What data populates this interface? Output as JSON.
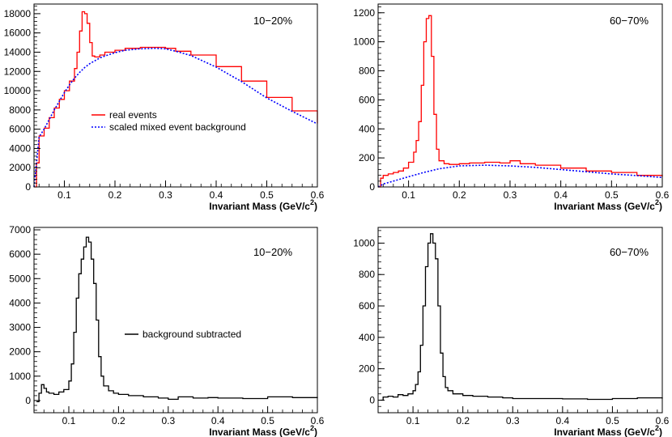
{
  "chart_data": [
    {
      "type": "line",
      "panel": "top-left",
      "annotation": "10−20%",
      "xlabel": "Invariant Mass (GeV/c",
      "xlabel_sup": "2",
      "xlabel_close": ")",
      "xlim": [
        0.04,
        0.6
      ],
      "ylim": [
        0,
        19000
      ],
      "xticks": [
        0.1,
        0.2,
        0.3,
        0.4,
        0.5,
        0.6
      ],
      "xtick_labels": [
        "0.1",
        "0.2",
        "0.3",
        "0.4",
        "0.5",
        "0.6"
      ],
      "yticks": [
        0,
        2000,
        4000,
        6000,
        8000,
        10000,
        12000,
        14000,
        16000,
        18000
      ],
      "ytick_labels": [
        "0",
        "2000",
        "4000",
        "6000",
        "8000",
        "10000",
        "12000",
        "14000",
        "16000",
        "18000"
      ],
      "legend_position": "middle-left",
      "series": [
        {
          "name": "real  events",
          "color": "#ff0000",
          "style": "solid-step",
          "x": [
            0.04,
            0.045,
            0.05,
            0.06,
            0.07,
            0.08,
            0.09,
            0.1,
            0.11,
            0.12,
            0.125,
            0.13,
            0.135,
            0.14,
            0.145,
            0.15,
            0.155,
            0.16,
            0.17,
            0.18,
            0.2,
            0.22,
            0.25,
            0.28,
            0.3,
            0.32,
            0.35,
            0.4,
            0.45,
            0.5,
            0.55,
            0.6
          ],
          "y": [
            0,
            2500,
            5300,
            6100,
            7200,
            8200,
            9100,
            10000,
            11000,
            12300,
            14000,
            16200,
            18200,
            18000,
            17000,
            15000,
            13600,
            13500,
            13700,
            14000,
            14200,
            14400,
            14500,
            14500,
            14400,
            14100,
            13700,
            12500,
            11000,
            9300,
            7900,
            6600
          ]
        },
        {
          "name": "scaled mixed event background",
          "color": "#0000ff",
          "style": "dotted",
          "x": [
            0.04,
            0.045,
            0.05,
            0.06,
            0.07,
            0.08,
            0.09,
            0.1,
            0.11,
            0.12,
            0.13,
            0.14,
            0.15,
            0.16,
            0.17,
            0.18,
            0.2,
            0.22,
            0.25,
            0.28,
            0.3,
            0.32,
            0.35,
            0.4,
            0.45,
            0.5,
            0.55,
            0.6
          ],
          "y": [
            0,
            2500,
            5200,
            6000,
            7000,
            8000,
            8900,
            9800,
            10600,
            11300,
            11900,
            12400,
            12800,
            13100,
            13400,
            13600,
            13950,
            14200,
            14350,
            14400,
            14350,
            14100,
            13650,
            12450,
            10950,
            9250,
            7850,
            6550
          ]
        }
      ]
    },
    {
      "type": "line",
      "panel": "top-right",
      "annotation": "60−70%",
      "xlabel": "Invariant Mass (GeV/c",
      "xlabel_sup": "2",
      "xlabel_close": ")",
      "xlim": [
        0.04,
        0.6
      ],
      "ylim": [
        0,
        1260
      ],
      "xticks": [
        0.1,
        0.2,
        0.3,
        0.4,
        0.5,
        0.6
      ],
      "xtick_labels": [
        "0.1",
        "0.2",
        "0.3",
        "0.4",
        "0.5",
        "0.6"
      ],
      "yticks": [
        0,
        200,
        400,
        600,
        800,
        1000,
        1200
      ],
      "ytick_labels": [
        "0",
        "200",
        "400",
        "600",
        "800",
        "1000",
        "1200"
      ],
      "series": [
        {
          "color": "#ff0000",
          "style": "solid-step",
          "x": [
            0.04,
            0.045,
            0.05,
            0.06,
            0.07,
            0.08,
            0.09,
            0.1,
            0.11,
            0.115,
            0.12,
            0.125,
            0.13,
            0.135,
            0.14,
            0.145,
            0.15,
            0.155,
            0.16,
            0.17,
            0.18,
            0.2,
            0.22,
            0.25,
            0.28,
            0.3,
            0.32,
            0.35,
            0.4,
            0.45,
            0.5,
            0.55,
            0.6
          ],
          "y": [
            0,
            60,
            80,
            90,
            100,
            110,
            130,
            170,
            240,
            320,
            450,
            700,
            1000,
            1160,
            1180,
            900,
            500,
            260,
            180,
            160,
            155,
            160,
            165,
            170,
            165,
            180,
            160,
            150,
            130,
            110,
            100,
            80,
            70
          ]
        },
        {
          "color": "#0000ff",
          "style": "dotted",
          "x": [
            0.04,
            0.05,
            0.07,
            0.1,
            0.13,
            0.16,
            0.2,
            0.25,
            0.3,
            0.35,
            0.4,
            0.45,
            0.5,
            0.55,
            0.6
          ],
          "y": [
            0,
            20,
            40,
            70,
            100,
            125,
            145,
            150,
            145,
            135,
            120,
            105,
            90,
            78,
            65
          ]
        }
      ]
    },
    {
      "type": "line",
      "panel": "bottom-left",
      "annotation": "10−20%",
      "xlabel": "Invariant Mass (GeV/c",
      "xlabel_sup": "2",
      "xlabel_close": ")",
      "xlim": [
        0.03,
        0.6
      ],
      "ylim": [
        -500,
        7100
      ],
      "xticks": [
        0.1,
        0.2,
        0.3,
        0.4,
        0.5,
        0.6
      ],
      "xtick_labels": [
        "0.1",
        "0.2",
        "0.3",
        "0.4",
        "0.5",
        "0.6"
      ],
      "yticks": [
        0,
        1000,
        2000,
        3000,
        4000,
        5000,
        6000,
        7000
      ],
      "ytick_labels": [
        "0",
        "1000",
        "2000",
        "3000",
        "4000",
        "5000",
        "6000",
        "7000"
      ],
      "legend_position": "middle-right",
      "series": [
        {
          "name": "background subtracted",
          "color": "#000000",
          "style": "solid-step",
          "x": [
            0.035,
            0.04,
            0.045,
            0.05,
            0.055,
            0.06,
            0.07,
            0.08,
            0.09,
            0.1,
            0.105,
            0.11,
            0.115,
            0.12,
            0.125,
            0.13,
            0.135,
            0.14,
            0.145,
            0.15,
            0.155,
            0.16,
            0.165,
            0.17,
            0.18,
            0.19,
            0.2,
            0.22,
            0.25,
            0.28,
            0.3,
            0.32,
            0.35,
            0.38,
            0.4,
            0.45,
            0.5,
            0.55,
            0.6
          ],
          "y": [
            -50,
            300,
            650,
            500,
            350,
            300,
            250,
            350,
            450,
            800,
            1500,
            2800,
            4200,
            5200,
            5800,
            6300,
            6700,
            6500,
            5800,
            4800,
            3300,
            1800,
            1000,
            600,
            400,
            300,
            250,
            200,
            150,
            100,
            50,
            150,
            100,
            120,
            100,
            80,
            150,
            120,
            100
          ]
        }
      ]
    },
    {
      "type": "line",
      "panel": "bottom-right",
      "annotation": "60−70%",
      "xlabel": "Invariant Mass (GeV/c",
      "xlabel_sup": "2",
      "xlabel_close": ")",
      "xlim": [
        0.03,
        0.6
      ],
      "ylim": [
        -80,
        1100
      ],
      "xticks": [
        0.1,
        0.2,
        0.3,
        0.4,
        0.5,
        0.6
      ],
      "xtick_labels": [
        "0.1",
        "0.2",
        "0.3",
        "0.4",
        "0.5",
        "0.6"
      ],
      "yticks": [
        0,
        200,
        400,
        600,
        800,
        1000
      ],
      "ytick_labels": [
        "0",
        "200",
        "400",
        "600",
        "800",
        "1000"
      ],
      "series": [
        {
          "color": "#000000",
          "style": "solid-step",
          "x": [
            0.035,
            0.04,
            0.05,
            0.06,
            0.07,
            0.08,
            0.09,
            0.1,
            0.105,
            0.11,
            0.115,
            0.12,
            0.125,
            0.13,
            0.135,
            0.14,
            0.145,
            0.15,
            0.155,
            0.16,
            0.165,
            0.17,
            0.18,
            0.2,
            0.22,
            0.25,
            0.28,
            0.3,
            0.35,
            0.4,
            0.45,
            0.5,
            0.55,
            0.6
          ],
          "y": [
            0,
            20,
            25,
            20,
            35,
            30,
            40,
            60,
            100,
            180,
            350,
            600,
            850,
            1000,
            1060,
            1000,
            900,
            600,
            300,
            150,
            80,
            60,
            40,
            30,
            25,
            20,
            15,
            10,
            10,
            8,
            5,
            10,
            15,
            10
          ]
        }
      ]
    }
  ]
}
